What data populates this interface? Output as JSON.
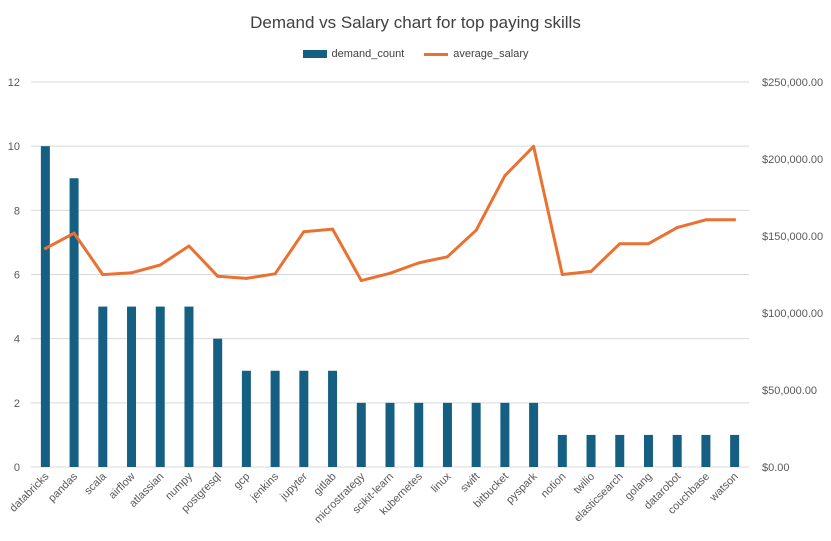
{
  "chart_data": {
    "type": "bar",
    "title": "Demand vs Salary chart for top paying skills",
    "categories": [
      "databricks",
      "pandas",
      "scala",
      "airflow",
      "atlassian",
      "numpy",
      "postgresql",
      "gcp",
      "jenkins",
      "jupyter",
      "gitlab",
      "microstrategy",
      "scikit-learn",
      "kubernetes",
      "linux",
      "swift",
      "bitbucket",
      "pyspark",
      "notion",
      "twilio",
      "elasticsearch",
      "golang",
      "datarobot",
      "couchbase",
      "watson"
    ],
    "series": [
      {
        "name": "demand_count",
        "type": "bar",
        "axis": "left",
        "color": "#156082",
        "values": [
          10,
          9,
          5,
          5,
          5,
          5,
          4,
          3,
          3,
          3,
          3,
          2,
          2,
          2,
          2,
          2,
          2,
          2,
          1,
          1,
          1,
          1,
          1,
          1,
          1
        ]
      },
      {
        "name": "average_salary",
        "type": "line",
        "axis": "right",
        "color": "#E97132",
        "values": [
          141907,
          151821,
          124903,
          126103,
          131162,
          143513,
          123879,
          122500,
          125436,
          152777,
          154500,
          121067,
          125781,
          132500,
          136508,
          153750,
          189155,
          208172,
          125000,
          127000,
          145000,
          145000,
          155486,
          160515,
          160515
        ]
      }
    ],
    "y_left": {
      "ylim": [
        0,
        12
      ],
      "ticks": [
        "0",
        "2",
        "4",
        "6",
        "8",
        "10",
        "12"
      ]
    },
    "y_right": {
      "ylim": [
        0,
        250000
      ],
      "ticks": [
        "$0.00",
        "$50,000.00",
        "$100,000.00",
        "$150,000.00",
        "$200,000.00",
        "$250,000.00"
      ]
    },
    "grid": true,
    "legend_position": "top"
  }
}
